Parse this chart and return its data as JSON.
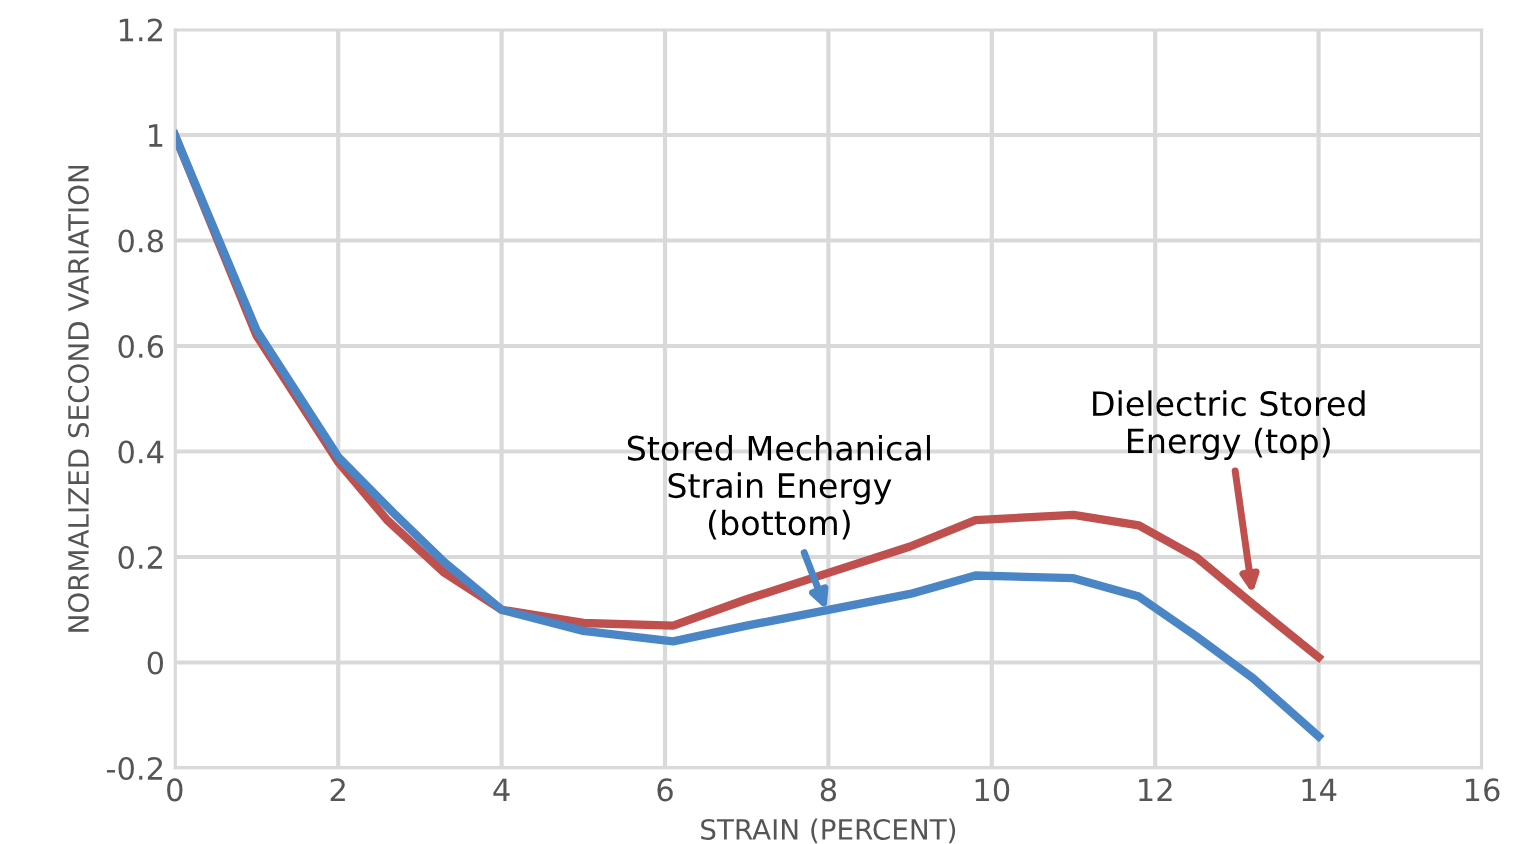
{
  "chart_data": {
    "type": "line",
    "xlabel": "STRAIN (PERCENT)",
    "ylabel": "NORMALIZED SECOND VARIATION",
    "xlim": [
      0,
      16
    ],
    "xticks": [
      0,
      2,
      4,
      6,
      8,
      10,
      12,
      14,
      16
    ],
    "ylim": [
      -0.2,
      1.2
    ],
    "yticks": [
      -0.2,
      0,
      0.2,
      0.4,
      0.6,
      0.8,
      1,
      1.2
    ],
    "grid": true,
    "marker": "none",
    "line_style": "solid",
    "series": [
      {
        "color": "#c0504d",
        "x": [
          0,
          1,
          2,
          2.6,
          3.3,
          4,
          5,
          6.1,
          7,
          8,
          9,
          9.8,
          11,
          11.8,
          12.5,
          13.2,
          14
        ],
        "values": [
          1,
          0.62,
          0.38,
          0.27,
          0.17,
          0.1,
          0.075,
          0.07,
          0.12,
          0.17,
          0.22,
          0.27,
          0.28,
          0.26,
          0.2,
          0.11,
          0.01
        ]
      },
      {
        "color": "#4a86c5",
        "x": [
          0,
          1,
          2,
          2.7,
          3.3,
          4,
          5,
          6.1,
          7,
          8,
          9,
          9.8,
          11,
          11.8,
          12.5,
          13.2,
          14
        ],
        "values": [
          1,
          0.63,
          0.39,
          0.28,
          0.19,
          0.1,
          0.06,
          0.04,
          0.07,
          0.1,
          0.13,
          0.165,
          0.16,
          0.125,
          0.05,
          -0.03,
          -0.14
        ]
      }
    ],
    "annotations": [
      {
        "text": "Dielectric Stored\nEnergy (top)",
        "x": 13.2,
        "y": 0.12
      },
      {
        "text": "Stored Mechanical\nStrain Energy\n(bottom)",
        "x": 8,
        "y": 0.09
      }
    ]
  }
}
